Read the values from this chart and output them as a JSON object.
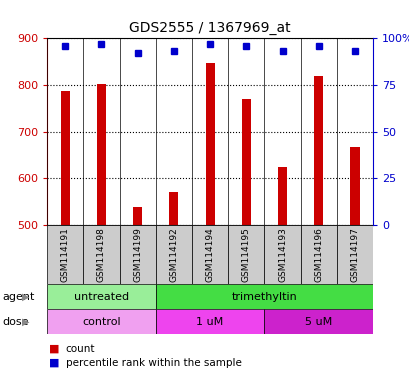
{
  "title": "GDS2555 / 1367969_at",
  "samples": [
    "GSM114191",
    "GSM114198",
    "GSM114199",
    "GSM114192",
    "GSM114194",
    "GSM114195",
    "GSM114193",
    "GSM114196",
    "GSM114197"
  ],
  "counts": [
    787,
    803,
    537,
    571,
    848,
    769,
    624,
    820,
    667
  ],
  "percentiles": [
    96,
    97,
    92,
    93,
    97,
    96,
    93,
    96,
    93
  ],
  "ymin": 500,
  "ymax": 900,
  "yticks": [
    500,
    600,
    700,
    800,
    900
  ],
  "y2ticks": [
    0,
    25,
    50,
    75,
    100
  ],
  "y2tick_labels": [
    "0",
    "25",
    "50",
    "75",
    "100%"
  ],
  "bar_color": "#cc0000",
  "dot_color": "#0000cc",
  "agent_groups": [
    {
      "label": "untreated",
      "start": 0,
      "end": 3,
      "color": "#99ee99"
    },
    {
      "label": "trimethyltin",
      "start": 3,
      "end": 9,
      "color": "#44dd44"
    }
  ],
  "dose_groups": [
    {
      "label": "control",
      "start": 0,
      "end": 3,
      "color": "#f0a0f0"
    },
    {
      "label": "1 uM",
      "start": 3,
      "end": 6,
      "color": "#ee44ee"
    },
    {
      "label": "5 uM",
      "start": 6,
      "end": 9,
      "color": "#cc22cc"
    }
  ],
  "legend_count_label": "count",
  "legend_pct_label": "percentile rank within the sample",
  "xlabel_agent": "agent",
  "xlabel_dose": "dose",
  "bg_color": "#ffffff",
  "sample_bg_color": "#cccccc",
  "bar_width": 0.25
}
